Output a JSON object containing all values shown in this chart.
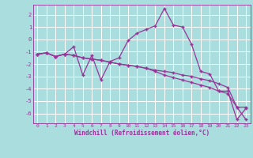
{
  "background_color": "#aadddd",
  "grid_color": "#ffffff",
  "line_color": "#993399",
  "marker": "+",
  "xlabel": "Windchill (Refroidissement éolien,°C)",
  "xlim": [
    -0.5,
    23.5
  ],
  "ylim": [
    -6.8,
    2.8
  ],
  "yticks": [
    2,
    1,
    0,
    -1,
    -2,
    -3,
    -4,
    -5,
    -6
  ],
  "xticks": [
    0,
    1,
    2,
    3,
    4,
    5,
    6,
    7,
    8,
    9,
    10,
    11,
    12,
    13,
    14,
    15,
    16,
    17,
    18,
    19,
    20,
    21,
    22,
    23
  ],
  "line1_x": [
    0,
    1,
    2,
    3,
    4,
    5,
    6,
    7,
    8,
    9,
    10,
    11,
    12,
    13,
    14,
    15,
    16,
    17,
    18,
    19,
    20,
    21,
    22,
    23
  ],
  "line1_y": [
    -1.2,
    -1.1,
    -1.4,
    -1.2,
    -0.6,
    -2.9,
    -1.3,
    -3.3,
    -1.8,
    -1.5,
    -0.1,
    0.5,
    0.8,
    1.1,
    2.5,
    1.15,
    1.0,
    -0.4,
    -2.6,
    -2.8,
    -4.2,
    -4.2,
    -6.5,
    -5.6
  ],
  "line2_x": [
    0,
    1,
    2,
    3,
    4,
    5,
    6,
    7,
    8,
    9,
    10,
    11,
    12,
    13,
    14,
    15,
    16,
    17,
    18,
    19,
    20,
    21,
    22,
    23
  ],
  "line2_y": [
    -1.2,
    -1.1,
    -1.4,
    -1.2,
    -1.3,
    -1.5,
    -1.6,
    -1.7,
    -1.85,
    -2.0,
    -2.1,
    -2.2,
    -2.35,
    -2.5,
    -2.6,
    -2.7,
    -2.9,
    -3.0,
    -3.2,
    -3.35,
    -3.6,
    -3.9,
    -5.5,
    -5.5
  ],
  "line3_x": [
    0,
    1,
    2,
    3,
    4,
    5,
    6,
    7,
    8,
    9,
    10,
    11,
    12,
    13,
    14,
    15,
    16,
    17,
    18,
    19,
    20,
    21,
    22,
    23
  ],
  "line3_y": [
    -1.2,
    -1.1,
    -1.4,
    -1.2,
    -1.3,
    -1.5,
    -1.6,
    -1.7,
    -1.85,
    -2.0,
    -2.1,
    -2.2,
    -2.35,
    -2.6,
    -2.9,
    -3.1,
    -3.3,
    -3.5,
    -3.7,
    -3.9,
    -4.2,
    -4.4,
    -5.5,
    -6.5
  ]
}
